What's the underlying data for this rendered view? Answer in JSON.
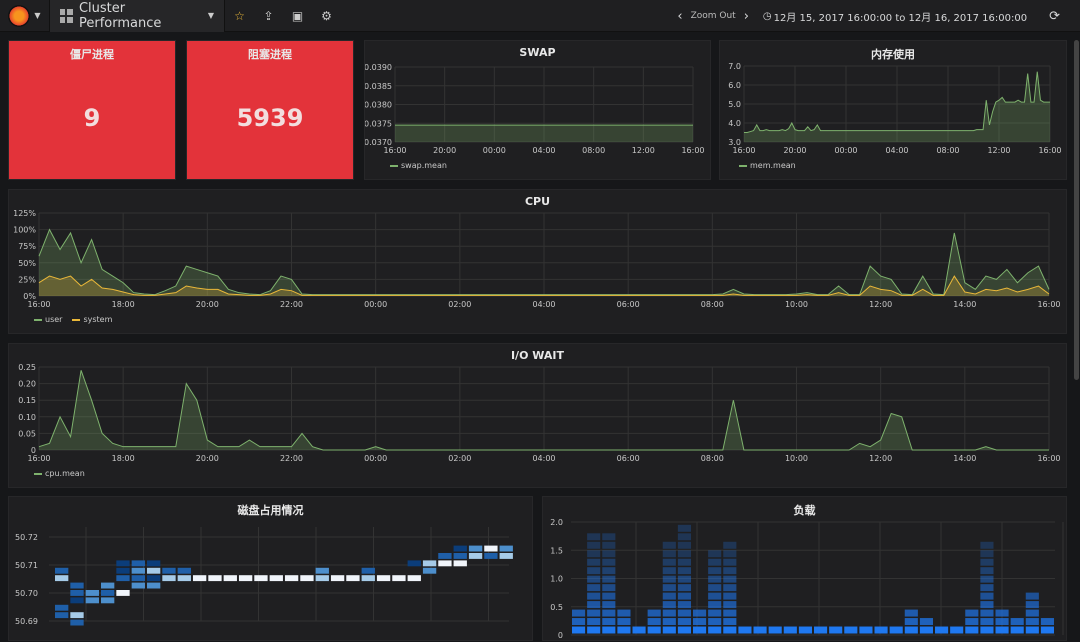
{
  "nav": {
    "title": "Cluster Performance",
    "zoom_out": "Zoom Out",
    "time_range": "12月 15, 2017 16:00:00 to 12月 16, 2017 16:00:00"
  },
  "colors": {
    "stat_bg": "#e3333a",
    "green": "#7eb26d",
    "yellow": "#eab839",
    "heat": [
      "#0b3d7a",
      "#1f5fa8",
      "#4d8fcc",
      "#a6cbe8",
      "#f0f4fa"
    ],
    "load": "#1f78f0"
  },
  "stats": [
    {
      "title": "僵尸进程",
      "value": "9"
    },
    {
      "title": "阻塞进程",
      "value": "5939"
    }
  ],
  "xticks": [
    "16:00",
    "20:00",
    "00:00",
    "04:00",
    "08:00",
    "12:00",
    "16:00"
  ],
  "xticks2": [
    "16:00",
    "18:00",
    "20:00",
    "22:00",
    "00:00",
    "02:00",
    "04:00",
    "06:00",
    "08:00",
    "10:00",
    "12:00",
    "14:00",
    "16:00"
  ],
  "chart_data": [
    {
      "type": "line",
      "title": "SWAP",
      "legend": [
        "swap.mean"
      ],
      "ylim": [
        0.037,
        0.039
      ],
      "yticks": [
        "0.0390",
        "0.0385",
        "0.0380",
        "0.0375",
        "0.0370"
      ],
      "x_hours": [
        0,
        24
      ],
      "series": [
        {
          "name": "swap.mean",
          "values": [
            0.03745,
            0.03745
          ]
        }
      ]
    },
    {
      "type": "line",
      "title": "内存使用",
      "legend": [
        "mem.mean"
      ],
      "ylim": [
        3,
        7
      ],
      "yticks": [
        "7.0",
        "6.0",
        "5.0",
        "4.0",
        "3.0"
      ],
      "series": [
        {
          "name": "mem.mean",
          "values": [
            3.5,
            3.5,
            3.55,
            3.6,
            3.9,
            3.6,
            3.6,
            3.65,
            3.6,
            3.6,
            3.6,
            3.6,
            3.65,
            3.6,
            3.7,
            4.0,
            3.65,
            3.6,
            3.6,
            3.6,
            3.8,
            3.6,
            3.65,
            3.9,
            3.6,
            3.6,
            3.6,
            3.6,
            3.6,
            3.6,
            3.6,
            3.6,
            3.6,
            3.6,
            3.6,
            3.6,
            3.6,
            3.6,
            3.6,
            3.6,
            3.6,
            3.6,
            3.6,
            3.6,
            3.6,
            3.6,
            3.6,
            3.6,
            3.6,
            3.6,
            3.6,
            3.6,
            3.6,
            3.6,
            3.6,
            3.6,
            3.6,
            3.6,
            3.6,
            3.6,
            3.6,
            3.6,
            3.6,
            3.6,
            3.6,
            3.6,
            3.6,
            3.6,
            3.6,
            3.6,
            3.6,
            3.6,
            3.6,
            3.65,
            3.65,
            3.65,
            5.2,
            3.9,
            4.6,
            5.1,
            5.2,
            5.35,
            5.1,
            5.1,
            5.1,
            5.1,
            5.2,
            5.1,
            5.1,
            6.6,
            5.1,
            5.1,
            6.7,
            5.2,
            5.1,
            5.1,
            5.1
          ]
        }
      ]
    },
    {
      "type": "line",
      "title": "CPU",
      "legend": [
        "user",
        "system"
      ],
      "ylim": [
        0,
        125
      ],
      "yticks": [
        "125%",
        "100%",
        "75%",
        "50%",
        "25%",
        "0%"
      ],
      "series": [
        {
          "name": "user",
          "values": [
            60,
            100,
            70,
            95,
            50,
            85,
            40,
            30,
            20,
            5,
            3,
            2,
            8,
            15,
            45,
            40,
            35,
            30,
            10,
            5,
            3,
            2,
            8,
            30,
            25,
            3,
            2,
            2,
            2,
            2,
            2,
            2,
            2,
            2,
            2,
            2,
            2,
            2,
            2,
            2,
            2,
            2,
            2,
            2,
            2,
            2,
            2,
            2,
            2,
            2,
            2,
            2,
            2,
            2,
            2,
            2,
            2,
            2,
            2,
            2,
            2,
            2,
            2,
            2,
            2,
            3,
            10,
            3,
            2,
            2,
            2,
            2,
            3,
            5,
            2,
            2,
            15,
            2,
            2,
            45,
            30,
            25,
            3,
            2,
            30,
            3,
            2,
            95,
            20,
            10,
            30,
            25,
            40,
            20,
            35,
            45,
            10
          ]
        },
        {
          "name": "system",
          "values": [
            20,
            30,
            25,
            30,
            15,
            25,
            12,
            10,
            6,
            2,
            1,
            1,
            3,
            5,
            15,
            12,
            10,
            10,
            3,
            2,
            1,
            1,
            3,
            10,
            8,
            1,
            1,
            1,
            1,
            1,
            1,
            1,
            1,
            1,
            1,
            1,
            1,
            1,
            1,
            1,
            1,
            1,
            1,
            1,
            1,
            1,
            1,
            1,
            1,
            1,
            1,
            1,
            1,
            1,
            1,
            1,
            1,
            1,
            1,
            1,
            1,
            1,
            1,
            1,
            1,
            1,
            3,
            1,
            1,
            1,
            1,
            1,
            1,
            2,
            1,
            1,
            5,
            1,
            1,
            15,
            10,
            8,
            1,
            1,
            10,
            1,
            1,
            30,
            6,
            3,
            10,
            8,
            12,
            6,
            10,
            15,
            3
          ]
        }
      ]
    },
    {
      "type": "line",
      "title": "I/O WAIT",
      "legend": [
        "cpu.mean"
      ],
      "ylim": [
        0,
        0.25
      ],
      "yticks": [
        "0.25",
        "0.20",
        "0.15",
        "0.10",
        "0.05",
        "0"
      ],
      "series": [
        {
          "name": "cpu.mean",
          "values": [
            0.01,
            0.02,
            0.1,
            0.04,
            0.24,
            0.15,
            0.05,
            0.02,
            0.01,
            0.01,
            0.01,
            0.01,
            0.01,
            0.01,
            0.2,
            0.15,
            0.03,
            0.01,
            0.01,
            0.01,
            0.03,
            0.01,
            0.01,
            0.01,
            0.01,
            0.05,
            0.01,
            0,
            0,
            0,
            0,
            0,
            0.01,
            0,
            0,
            0,
            0,
            0,
            0,
            0,
            0,
            0,
            0,
            0,
            0,
            0,
            0,
            0,
            0,
            0,
            0,
            0,
            0,
            0,
            0,
            0,
            0,
            0,
            0,
            0,
            0,
            0,
            0,
            0,
            0,
            0,
            0.15,
            0,
            0,
            0,
            0,
            0,
            0,
            0,
            0,
            0,
            0,
            0,
            0.02,
            0.01,
            0.03,
            0.11,
            0.1,
            0,
            0,
            0,
            0,
            0,
            0,
            0,
            0.01,
            0,
            0,
            0,
            0,
            0,
            0
          ]
        }
      ]
    },
    {
      "type": "heatmap",
      "title": "磁盘占用情况",
      "yticks": [
        "50.72",
        "50.71",
        "50.70",
        "50.69"
      ],
      "cells": [
        [
          0,
          7,
          1
        ],
        [
          0,
          6,
          3
        ],
        [
          0,
          2,
          1
        ],
        [
          0,
          1,
          1
        ],
        [
          1,
          5,
          1
        ],
        [
          1,
          4,
          1
        ],
        [
          1,
          3,
          0
        ],
        [
          1,
          1,
          3
        ],
        [
          1,
          0,
          1
        ],
        [
          2,
          4,
          2
        ],
        [
          2,
          3,
          2
        ],
        [
          3,
          5,
          2
        ],
        [
          3,
          4,
          1
        ],
        [
          3,
          3,
          2
        ],
        [
          4,
          8,
          0
        ],
        [
          4,
          7,
          0
        ],
        [
          4,
          6,
          1
        ],
        [
          4,
          4,
          4
        ],
        [
          5,
          8,
          1
        ],
        [
          5,
          7,
          2
        ],
        [
          5,
          6,
          1
        ],
        [
          5,
          5,
          2
        ],
        [
          6,
          8,
          0
        ],
        [
          6,
          7,
          3
        ],
        [
          6,
          6,
          0
        ],
        [
          6,
          5,
          2
        ],
        [
          7,
          7,
          1
        ],
        [
          7,
          6,
          3
        ],
        [
          8,
          7,
          1
        ],
        [
          8,
          6,
          3
        ],
        [
          9,
          6,
          4
        ],
        [
          10,
          6,
          4
        ],
        [
          11,
          6,
          4
        ],
        [
          12,
          6,
          4
        ],
        [
          13,
          6,
          4
        ],
        [
          14,
          6,
          4
        ],
        [
          15,
          6,
          4
        ],
        [
          16,
          6,
          4
        ],
        [
          17,
          7,
          2
        ],
        [
          17,
          6,
          3
        ],
        [
          18,
          6,
          4
        ],
        [
          19,
          6,
          4
        ],
        [
          20,
          7,
          1
        ],
        [
          20,
          6,
          3
        ],
        [
          21,
          6,
          4
        ],
        [
          22,
          6,
          4
        ],
        [
          23,
          8,
          0
        ],
        [
          23,
          6,
          4
        ],
        [
          24,
          8,
          3
        ],
        [
          24,
          7,
          2
        ],
        [
          25,
          9,
          1
        ],
        [
          25,
          8,
          4
        ],
        [
          26,
          10,
          0
        ],
        [
          26,
          9,
          1
        ],
        [
          26,
          8,
          4
        ],
        [
          27,
          10,
          2
        ],
        [
          27,
          9,
          3
        ],
        [
          28,
          10,
          4
        ],
        [
          28,
          9,
          1
        ],
        [
          29,
          10,
          2
        ],
        [
          29,
          9,
          3
        ]
      ]
    },
    {
      "type": "heatmap",
      "title": "负载",
      "yticks": [
        "2.0",
        "1.5",
        "1.0",
        "0.5",
        "0"
      ],
      "ylim": [
        0,
        2
      ],
      "column_max": [
        0.5,
        1.8,
        1.8,
        0.5,
        0.2,
        0.5,
        1.6,
        1.9,
        0.5,
        1.5,
        1.6,
        0.1,
        0.1,
        0.1,
        0.1,
        0.1,
        0.1,
        0.1,
        0.1,
        0.1,
        0.1,
        0.1,
        0.5,
        0.3,
        0.1,
        0.1,
        0.5,
        1.6,
        0.5,
        0.3,
        0.7,
        0.3
      ]
    }
  ]
}
